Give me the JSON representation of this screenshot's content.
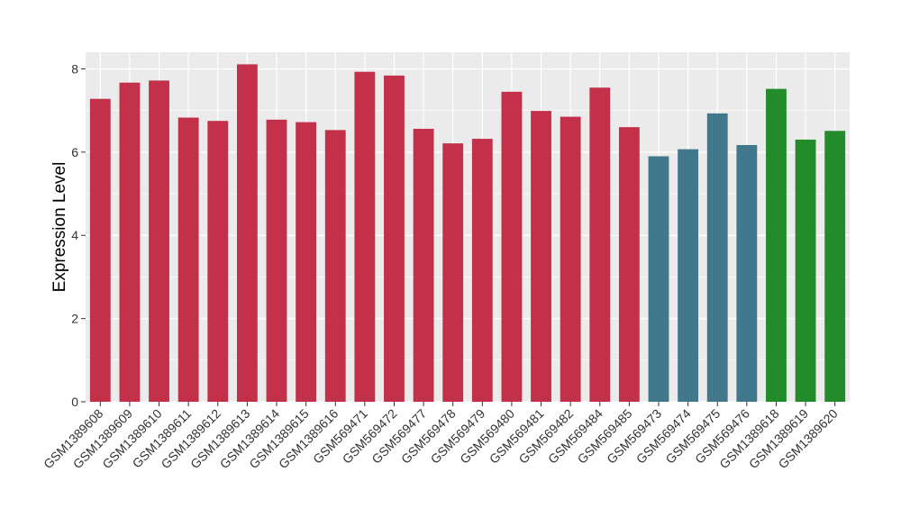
{
  "chart_data": {
    "type": "bar",
    "ylabel": "Expression Level",
    "xlabel": "",
    "ylim": [
      0,
      8.4
    ],
    "yticks": [
      0,
      2,
      4,
      6,
      8
    ],
    "grid": true,
    "categories": [
      "GSM1389608",
      "GSM1389609",
      "GSM1389610",
      "GSM1389611",
      "GSM1389612",
      "GSM1389613",
      "GSM1389614",
      "GSM1389615",
      "GSM1389616",
      "GSM569471",
      "GSM569472",
      "GSM569477",
      "GSM569478",
      "GSM569479",
      "GSM569480",
      "GSM569481",
      "GSM569482",
      "GSM569484",
      "GSM569485",
      "GSM569473",
      "GSM569474",
      "GSM569475",
      "GSM569476",
      "GSM1389618",
      "GSM1389619",
      "GSM1389620"
    ],
    "values": [
      7.28,
      7.67,
      7.72,
      6.83,
      6.75,
      8.11,
      6.78,
      6.72,
      6.53,
      7.93,
      7.84,
      6.56,
      6.21,
      6.32,
      7.45,
      6.99,
      6.85,
      7.55,
      6.6,
      5.9,
      6.07,
      6.93,
      6.17,
      7.52,
      6.3,
      6.51
    ],
    "group_colors": [
      "#c3304a",
      "#c3304a",
      "#c3304a",
      "#c3304a",
      "#c3304a",
      "#c3304a",
      "#c3304a",
      "#c3304a",
      "#c3304a",
      "#c3304a",
      "#c3304a",
      "#c3304a",
      "#c3304a",
      "#c3304a",
      "#c3304a",
      "#c3304a",
      "#c3304a",
      "#c3304a",
      "#c3304a",
      "#41788b",
      "#41788b",
      "#41788b",
      "#41788b",
      "#228b2a",
      "#228b2a",
      "#228b2a"
    ],
    "panel_background": "#ebebeb",
    "gridline_color": "#ffffff"
  }
}
